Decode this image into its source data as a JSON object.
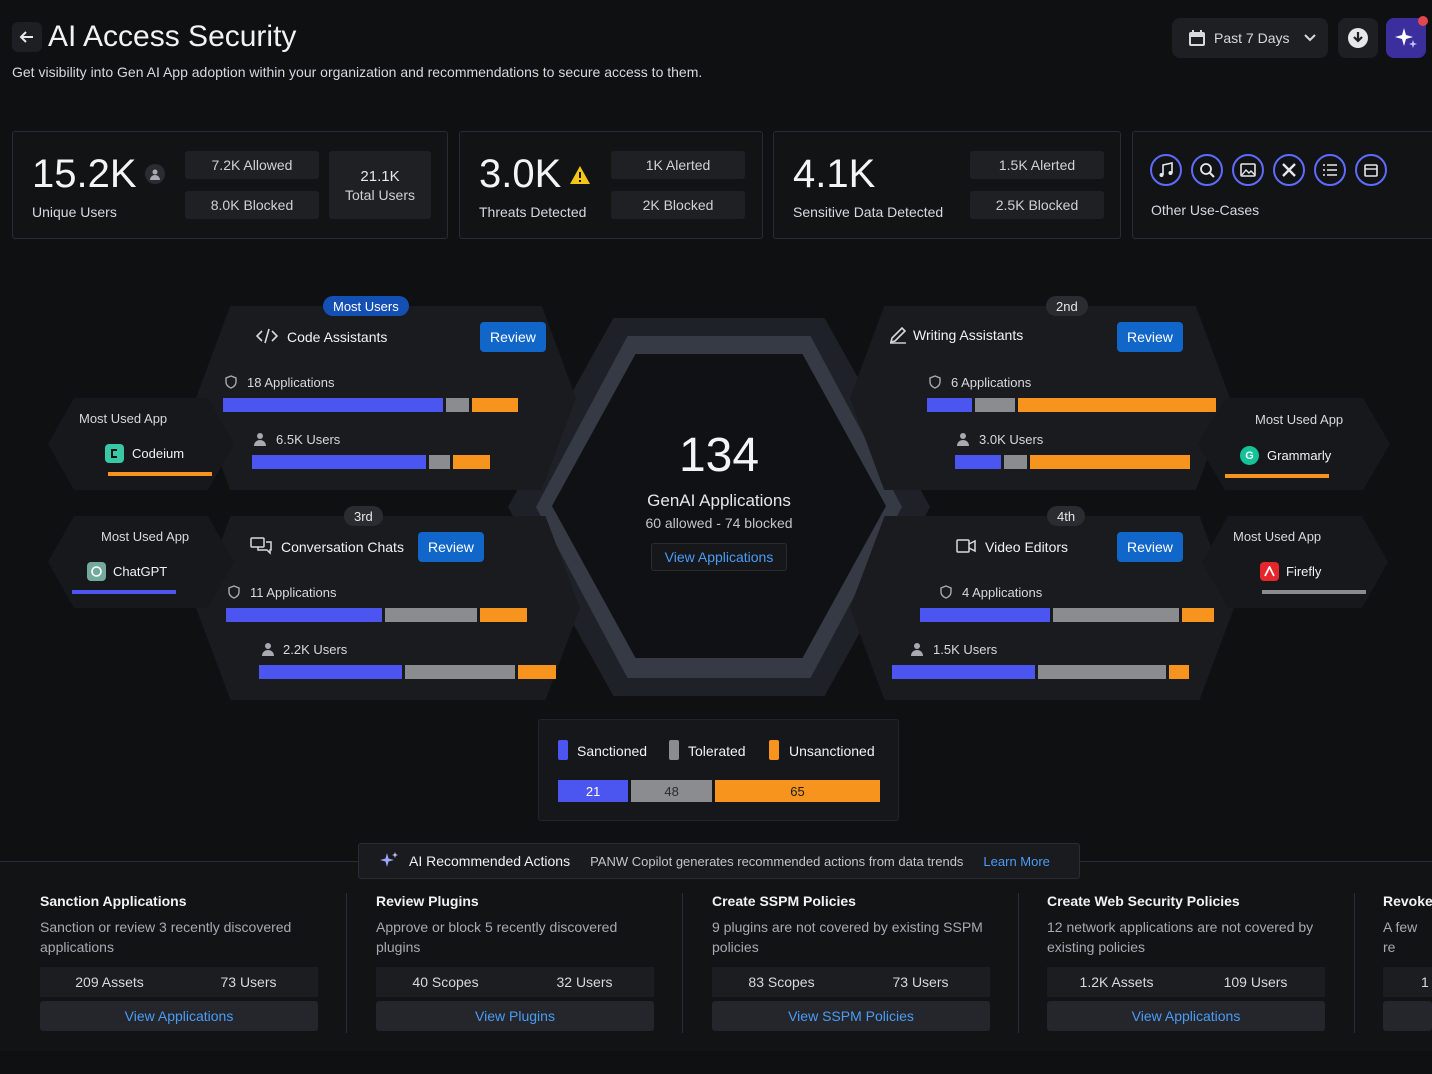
{
  "header": {
    "title": "AI Access Security",
    "subtitle": "Get visibility into Gen AI App adoption within your organization and recommendations to secure access to them.",
    "date_range": "Past 7 Days",
    "icons": {
      "back": "arrow-left-icon",
      "calendar": "calendar-icon",
      "chevron": "chevron-down-icon",
      "download": "download-icon",
      "copilot": "sparkle-icon"
    }
  },
  "stats": {
    "users": {
      "value": "15.2K",
      "label": "Unique Users",
      "allowed": "7.2K Allowed",
      "blocked": "8.0K Blocked",
      "total_value": "21.1K",
      "total_label": "Total Users"
    },
    "threats": {
      "value": "3.0K",
      "label": "Threats Detected",
      "alerted": "1K Alerted",
      "blocked": "2K Blocked"
    },
    "sensitive": {
      "value": "4.1K",
      "label": "Sensitive Data Detected",
      "alerted": "1.5K Alerted",
      "blocked": "2.5K Blocked"
    },
    "other": {
      "label": "Other Use-Cases",
      "icons": [
        "music-icon",
        "search-icon",
        "image-icon",
        "tools-icon",
        "list-icon",
        "calendar-icon"
      ]
    }
  },
  "categories": {
    "code": {
      "tag": "Most Users",
      "name": "Code Assistants",
      "review": "Review",
      "apps": "18 Applications",
      "users": "6.5K Users",
      "apps_split": [
        0.76,
        0.08,
        0.16
      ],
      "users_split": [
        0.75,
        0.09,
        0.16
      ],
      "most_used_label": "Most Used App",
      "most_used_app": "Codeium"
    },
    "writing": {
      "tag": "2nd",
      "name": "Writing Assistants",
      "review": "Review",
      "apps": "6 Applications",
      "users": "3.0K Users",
      "apps_split": [
        0.16,
        0.14,
        0.7
      ],
      "users_split": [
        0.2,
        0.1,
        0.7
      ],
      "most_used_label": "Most Used App",
      "most_used_app": "Grammarly"
    },
    "chat": {
      "tag": "3rd",
      "name": "Conversation Chats",
      "review": "Review",
      "apps": "11 Applications",
      "users": "2.2K Users",
      "apps_split": [
        0.53,
        0.31,
        0.16
      ],
      "users_split": [
        0.49,
        0.38,
        0.13
      ],
      "most_used_label": "Most Used App",
      "most_used_app": "ChatGPT"
    },
    "video": {
      "tag": "4th",
      "name": "Video Editors",
      "review": "Review",
      "apps": "4 Applications",
      "users": "1.5K Users",
      "apps_split": [
        0.45,
        0.44,
        0.11
      ],
      "users_split": [
        0.49,
        0.44,
        0.07
      ],
      "most_used_label": "Most Used App",
      "most_used_app": "Firefly"
    }
  },
  "center": {
    "value": "134",
    "label": "GenAI Applications",
    "detail": "60 allowed - 74 blocked",
    "link": "View Applications"
  },
  "legend": {
    "sanctioned": "Sanctioned",
    "tolerated": "Tolerated",
    "unsanctioned": "Unsanctioned",
    "counts": {
      "sanctioned": 21,
      "tolerated": 48,
      "unsanctioned": 65
    },
    "colors": {
      "sanctioned": "#4b55ef",
      "tolerated": "#8b8c90",
      "unsanctioned": "#f7941d"
    }
  },
  "recommendations": {
    "title": "AI Recommended Actions",
    "subtitle": "PANW Copilot generates recommended actions from data trends",
    "learn_more": "Learn More",
    "items": [
      {
        "title": "Sanction Applications",
        "desc": "Sanction or review 3 recently discovered applications",
        "stat1": "209 Assets",
        "stat2": "73 Users",
        "link": "View Applications"
      },
      {
        "title": "Review Plugins",
        "desc": "Approve or block 5 recently discovered plugins",
        "stat1": "40 Scopes",
        "stat2": "32 Users",
        "link": "View Plugins"
      },
      {
        "title": "Create SSPM Policies",
        "desc": "9 plugins are not covered by existing SSPM policies",
        "stat1": "83 Scopes",
        "stat2": "73 Users",
        "link": "View SSPM Policies"
      },
      {
        "title": "Create Web Security Policies",
        "desc": "12 network applications are not covered by existing policies",
        "stat1": "1.2K Assets",
        "stat2": "109 Users",
        "link": "View Applications"
      },
      {
        "title": "Revoke",
        "desc": "A few re revoked",
        "stat1": "1",
        "stat2": "",
        "link": ""
      }
    ]
  }
}
